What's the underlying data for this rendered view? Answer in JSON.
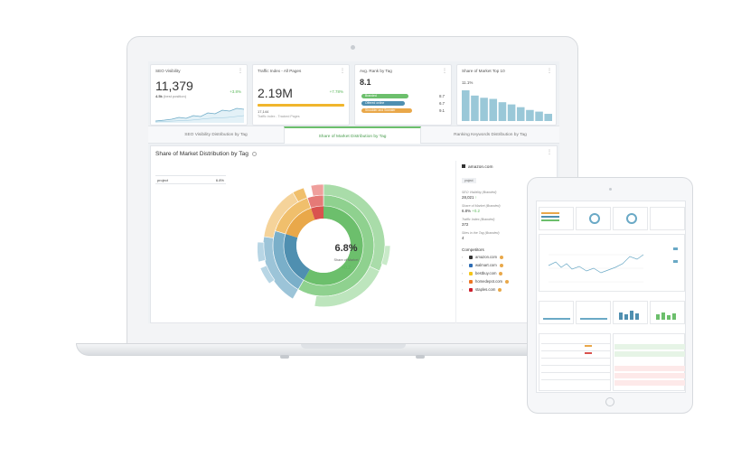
{
  "kpis": {
    "seo_visibility": {
      "title": "SEO Visibility",
      "value": "11,379",
      "change": "+3.8%",
      "sub_value": "4.5k",
      "sub_label": "(best position)"
    },
    "traffic_index": {
      "title": "Traffic Index - All Pages",
      "value": "2.19M",
      "change": "+7.78%",
      "sub_value": "17,144",
      "sub_label": "Traffic index - Tracked Pages"
    },
    "avg_rank": {
      "title": "Avg. Rank by Tag",
      "value": "8.1",
      "rows": [
        {
          "label": "Branded",
          "value": "8.7",
          "color": "#6cbf6c"
        },
        {
          "label": "Offered online",
          "value": "6.7",
          "color": "#4f8fb0"
        },
        {
          "label": "Shoulder and Sweater",
          "value": "9.1",
          "color": "#e9a84a"
        }
      ]
    },
    "share_top10": {
      "title": "Share of Market Top 10",
      "value": "11.1%",
      "bars": [
        11.1,
        9.2,
        8.4,
        8.0,
        6.8,
        6.0,
        5.0,
        4.0,
        3.4,
        2.6
      ]
    }
  },
  "tabs": [
    {
      "label": "SEO Visibility Distribution by Tag",
      "active": false
    },
    {
      "label": "Share of Market Distribution by Tag",
      "active": true
    },
    {
      "label": "Ranking Keywords Distribution by Tag",
      "active": false
    }
  ],
  "panel": {
    "title": "Share of Market Distribution by Tag",
    "project_label": "project",
    "project_value": "6.8%",
    "center_value": "6.8%",
    "center_label": "Share of Market",
    "center_change": "+0.2"
  },
  "side": {
    "domain": "amazon.com",
    "badge": "project",
    "metrics": [
      {
        "label": "SEO Visibility (Branded)",
        "value": "28,021",
        "extra": "↑"
      },
      {
        "label": "Share of Market (Branded)",
        "value": "6.8%",
        "extra": "+0.2"
      },
      {
        "label": "Traffic Index (Branded)",
        "value": "372",
        "extra": ""
      },
      {
        "label": "Sites in the Tag (Branded)",
        "value": "4",
        "extra": ""
      }
    ],
    "competitors_label": "Competitors",
    "share_label": "Share of",
    "competitors": [
      {
        "name": "amazon.com",
        "color": "#333333",
        "dot": "#e9a84a"
      },
      {
        "name": "walmart.com",
        "color": "#2e6db4",
        "dot": "#e9a84a"
      },
      {
        "name": "bestbuy.com",
        "color": "#f5c518",
        "dot": "#e9a84a"
      },
      {
        "name": "homedepot.com",
        "color": "#ee7623",
        "dot": "#e9a84a"
      },
      {
        "name": "staples.com",
        "color": "#cc1f2d",
        "dot": "#e9a84a"
      }
    ]
  },
  "colors": {
    "green": "#6cbf6c",
    "blue": "#4f8fb0",
    "orange": "#e9a84a",
    "red": "#d9534f"
  }
}
